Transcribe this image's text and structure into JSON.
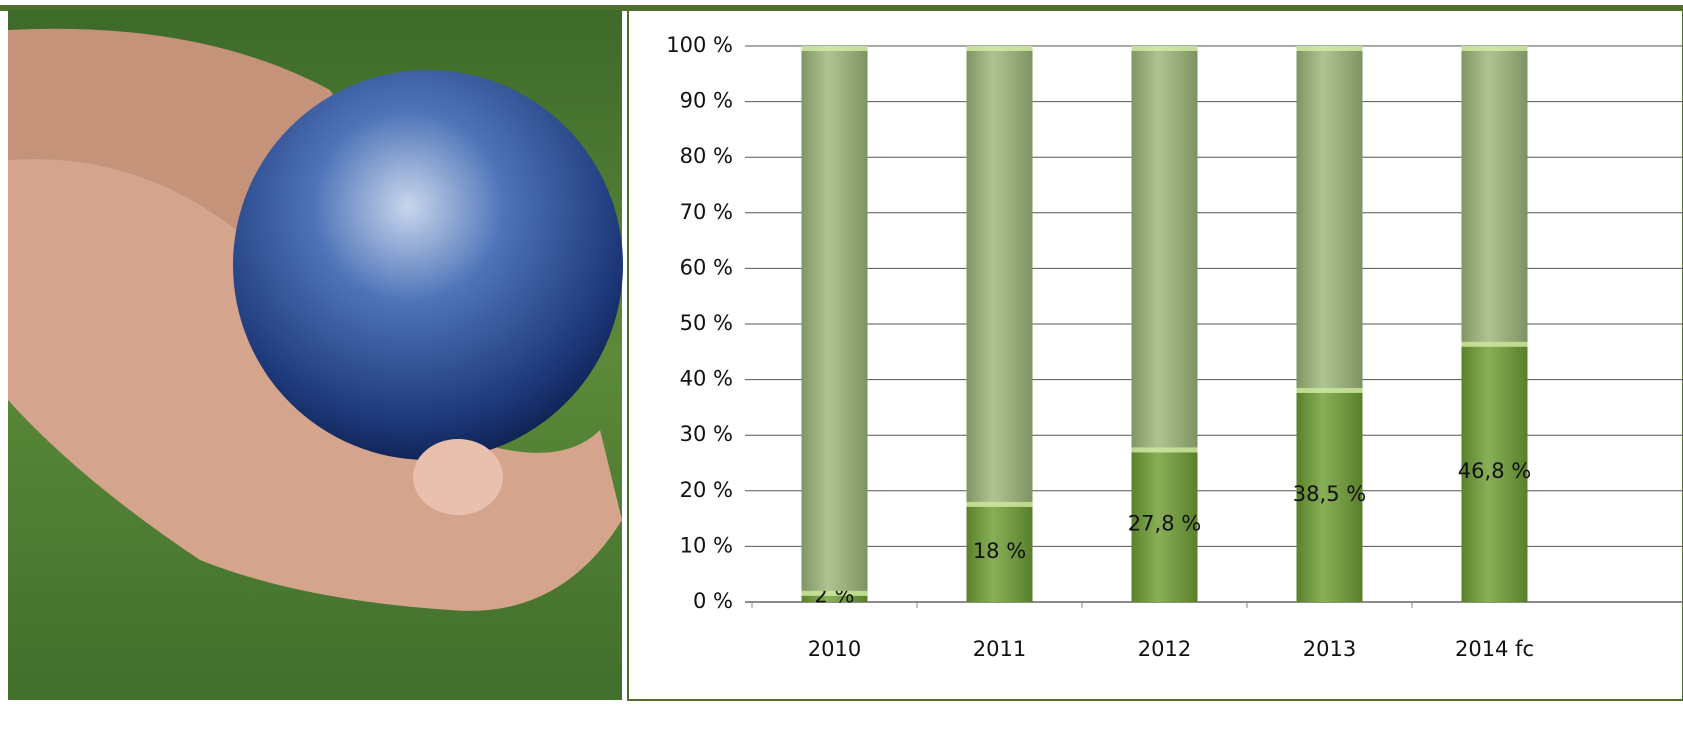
{
  "chart_data": {
    "type": "stacked_bar",
    "categories": [
      "2010",
      "2011",
      "2012",
      "2013",
      "2014 fc"
    ],
    "series": [
      {
        "color": "#6e9e33",
        "values": [
          2,
          18,
          27.8,
          38.5,
          46.8
        ],
        "value_labels": [
          "2 %",
          "18 %",
          "27,8 %",
          "38,5 %",
          "46,8 %"
        ]
      },
      {
        "color": "#9db67a",
        "values": [
          98,
          82,
          72.2,
          61.5,
          53.2
        ]
      }
    ],
    "ylim": [
      0,
      100
    ],
    "yticks": [
      {
        "value": 0,
        "label": "0 %"
      },
      {
        "value": 10,
        "label": "10 %"
      },
      {
        "value": 20,
        "label": "20 %"
      },
      {
        "value": 30,
        "label": "30 %"
      },
      {
        "value": 40,
        "label": "40 %"
      },
      {
        "value": 50,
        "label": "50 %"
      },
      {
        "value": 60,
        "label": "60 %"
      },
      {
        "value": 70,
        "label": "70 %"
      },
      {
        "value": 80,
        "label": "80 %"
      },
      {
        "value": 90,
        "label": "90 %"
      },
      {
        "value": 100,
        "label": "100 %"
      }
    ],
    "grid": true
  }
}
